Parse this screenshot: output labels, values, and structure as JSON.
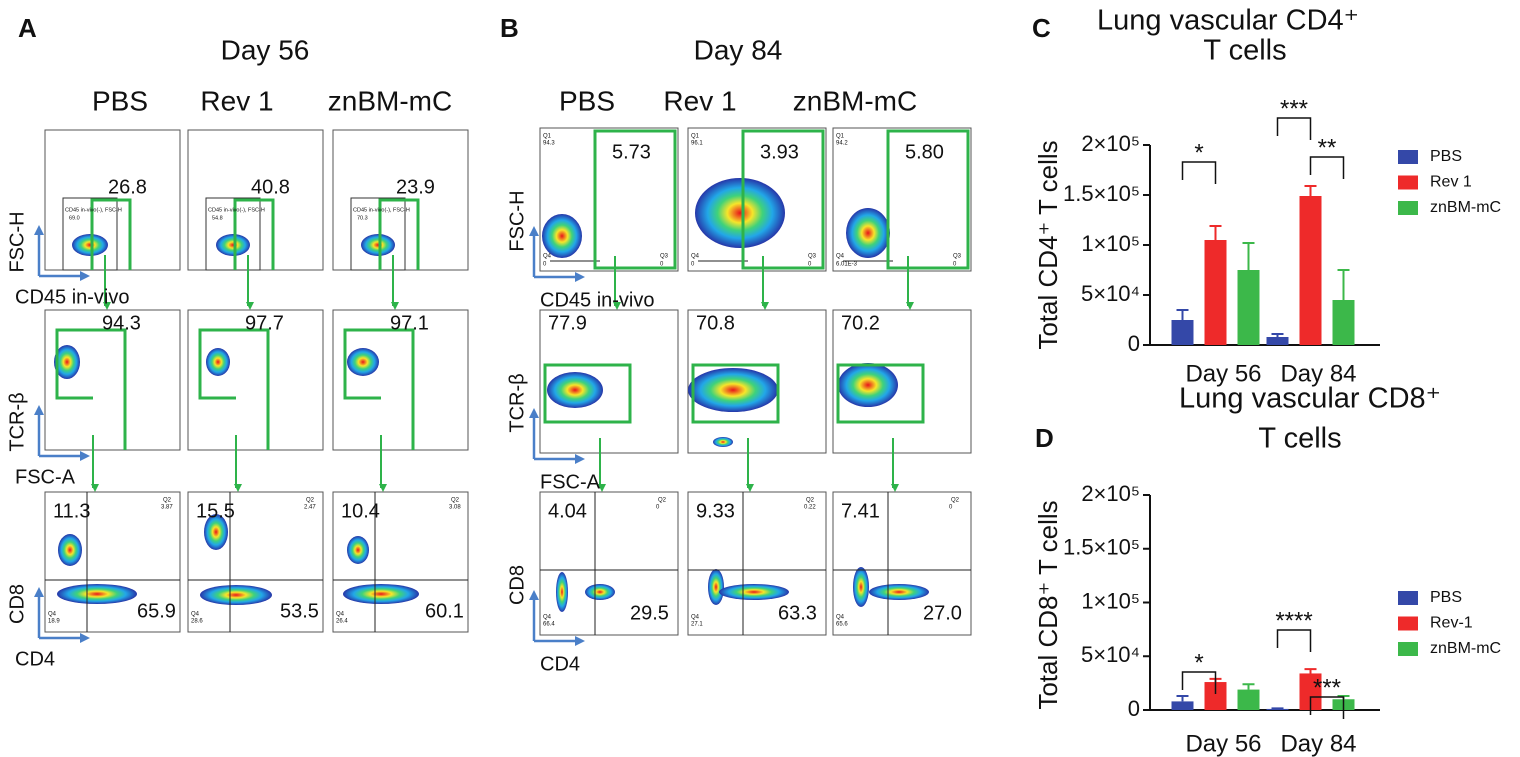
{
  "panel_a": {
    "label": "A",
    "title": "Day 56",
    "columns": [
      "PBS",
      "Rev 1",
      "znBM-mC"
    ],
    "rows": [
      {
        "y_label": "FSC-H",
        "x_label": "CD45 in-vivo",
        "plots": [
          {
            "value": "26.8",
            "gate": "CD45 in-vivo(-), FSC-H",
            "gate_value": "69.0"
          },
          {
            "value": "40.8",
            "gate": "CD45 in-vivo(-), FSC-H",
            "gate_value": "54.8"
          },
          {
            "value": "23.9",
            "gate": "CD45 in-vivo(-), FSC-H",
            "gate_value": "70.3"
          }
        ]
      },
      {
        "y_label": "TCR-β",
        "x_label": "FSC-A",
        "plots": [
          {
            "value": "94.3"
          },
          {
            "value": "97.7"
          },
          {
            "value": "97.1"
          }
        ]
      },
      {
        "y_label": "CD8",
        "x_label": "CD4",
        "plots": [
          {
            "upper_left": "11.3",
            "lower_right": "65.9",
            "q2": "Q2",
            "q2_value": "3.87",
            "q4": "Q4",
            "q4_value": "18.9"
          },
          {
            "upper_left": "15.5",
            "lower_right": "53.5",
            "q2": "Q2",
            "q2_value": "2.47",
            "q4": "Q4",
            "q4_value": "28.6"
          },
          {
            "upper_left": "10.4",
            "lower_right": "60.1",
            "q2": "Q2",
            "q2_value": "3.08",
            "q4": "Q4",
            "q4_value": "26.4"
          }
        ]
      }
    ]
  },
  "panel_b": {
    "label": "B",
    "title": "Day 84",
    "columns": [
      "PBS",
      "Rev 1",
      "znBM-mC"
    ],
    "rows": [
      {
        "y_label": "FSC-H",
        "x_label": "CD45 in-vivo",
        "plots": [
          {
            "value": "5.73",
            "q1": "Q1",
            "q1_value": "94.3",
            "q4": "Q4",
            "q4_value": "0",
            "q3": "Q3",
            "q3_value": "0"
          },
          {
            "value": "3.93",
            "q1": "Q1",
            "q1_value": "96.1",
            "q4": "Q4",
            "q4_value": "0",
            "q3": "Q3",
            "q3_value": "0"
          },
          {
            "value": "5.80",
            "q1": "Q1",
            "q1_value": "94.2",
            "q4": "Q4",
            "q4_value": "6.01E-3",
            "q3": "Q3",
            "q3_value": "0"
          }
        ]
      },
      {
        "y_label": "TCR-β",
        "x_label": "FSC-A",
        "plots": [
          {
            "value": "77.9"
          },
          {
            "value": "70.8"
          },
          {
            "value": "70.2"
          }
        ]
      },
      {
        "y_label": "CD8",
        "x_label": "CD4",
        "plots": [
          {
            "upper_left": "4.04",
            "lower_right": "29.5",
            "q2": "Q2",
            "q2_value": "0",
            "q4": "Q4",
            "q4_value": "66.4"
          },
          {
            "upper_left": "9.33",
            "lower_right": "63.3",
            "q2": "Q2",
            "q2_value": "0.22",
            "q4": "Q4",
            "q4_value": "27.1"
          },
          {
            "upper_left": "7.41",
            "lower_right": "27.0",
            "q2": "Q2",
            "q2_value": "0",
            "q4": "Q4",
            "q4_value": "65.6"
          }
        ]
      }
    ]
  },
  "chart_data": [
    {
      "type": "bar",
      "panel_label": "C",
      "title": [
        "Lung vascular CD4⁺",
        "T cells"
      ],
      "ylabel": "Total CD4⁺ T cells",
      "categories": [
        "Day 56",
        "Day 84"
      ],
      "series": [
        {
          "name": "PBS",
          "color": "#3448a8",
          "values": [
            25000,
            8000
          ],
          "errors": [
            10000,
            3000
          ]
        },
        {
          "name": "Rev 1",
          "color": "#ee2a2a",
          "values": [
            105000,
            149000
          ],
          "errors": [
            14000,
            10000
          ]
        },
        {
          "name": "znBM-mC",
          "color": "#3cb84a",
          "values": [
            75000,
            45000
          ],
          "errors": [
            27000,
            30000
          ]
        }
      ],
      "ylim": [
        0,
        200000
      ],
      "yticks": [
        0,
        {
          "value": 50000,
          "label": "5×10⁴"
        },
        {
          "value": 100000,
          "label": "1×10⁵"
        },
        {
          "value": 150000,
          "label": "1.5×10⁵"
        },
        {
          "value": 200000,
          "label": "2×10⁵"
        }
      ],
      "annotations": [
        "*",
        "***",
        "**"
      ]
    },
    {
      "type": "bar",
      "panel_label": "D",
      "title": [
        "Lung vascular CD8⁺",
        "T cells"
      ],
      "ylabel": "Total CD8⁺ T cells",
      "categories": [
        "Day 56",
        "Day 84"
      ],
      "series": [
        {
          "name": "PBS",
          "color": "#3448a8",
          "values": [
            8000,
            1000
          ],
          "errors": [
            5000,
            500
          ]
        },
        {
          "name": "Rev-1",
          "color": "#ee2a2a",
          "values": [
            26000,
            34000
          ],
          "errors": [
            3000,
            4000
          ]
        },
        {
          "name": "znBM-mC",
          "color": "#3cb84a",
          "values": [
            19000,
            10000
          ],
          "errors": [
            5000,
            3000
          ]
        }
      ],
      "ylim": [
        0,
        200000
      ],
      "yticks": [
        0,
        {
          "value": 50000,
          "label": "5×10⁴"
        },
        {
          "value": 100000,
          "label": "1×10⁵"
        },
        {
          "value": 150000,
          "label": "1.5×10⁵"
        },
        {
          "value": 200000,
          "label": "2×10⁵"
        }
      ],
      "annotations": [
        "*",
        "****",
        "***"
      ]
    }
  ]
}
